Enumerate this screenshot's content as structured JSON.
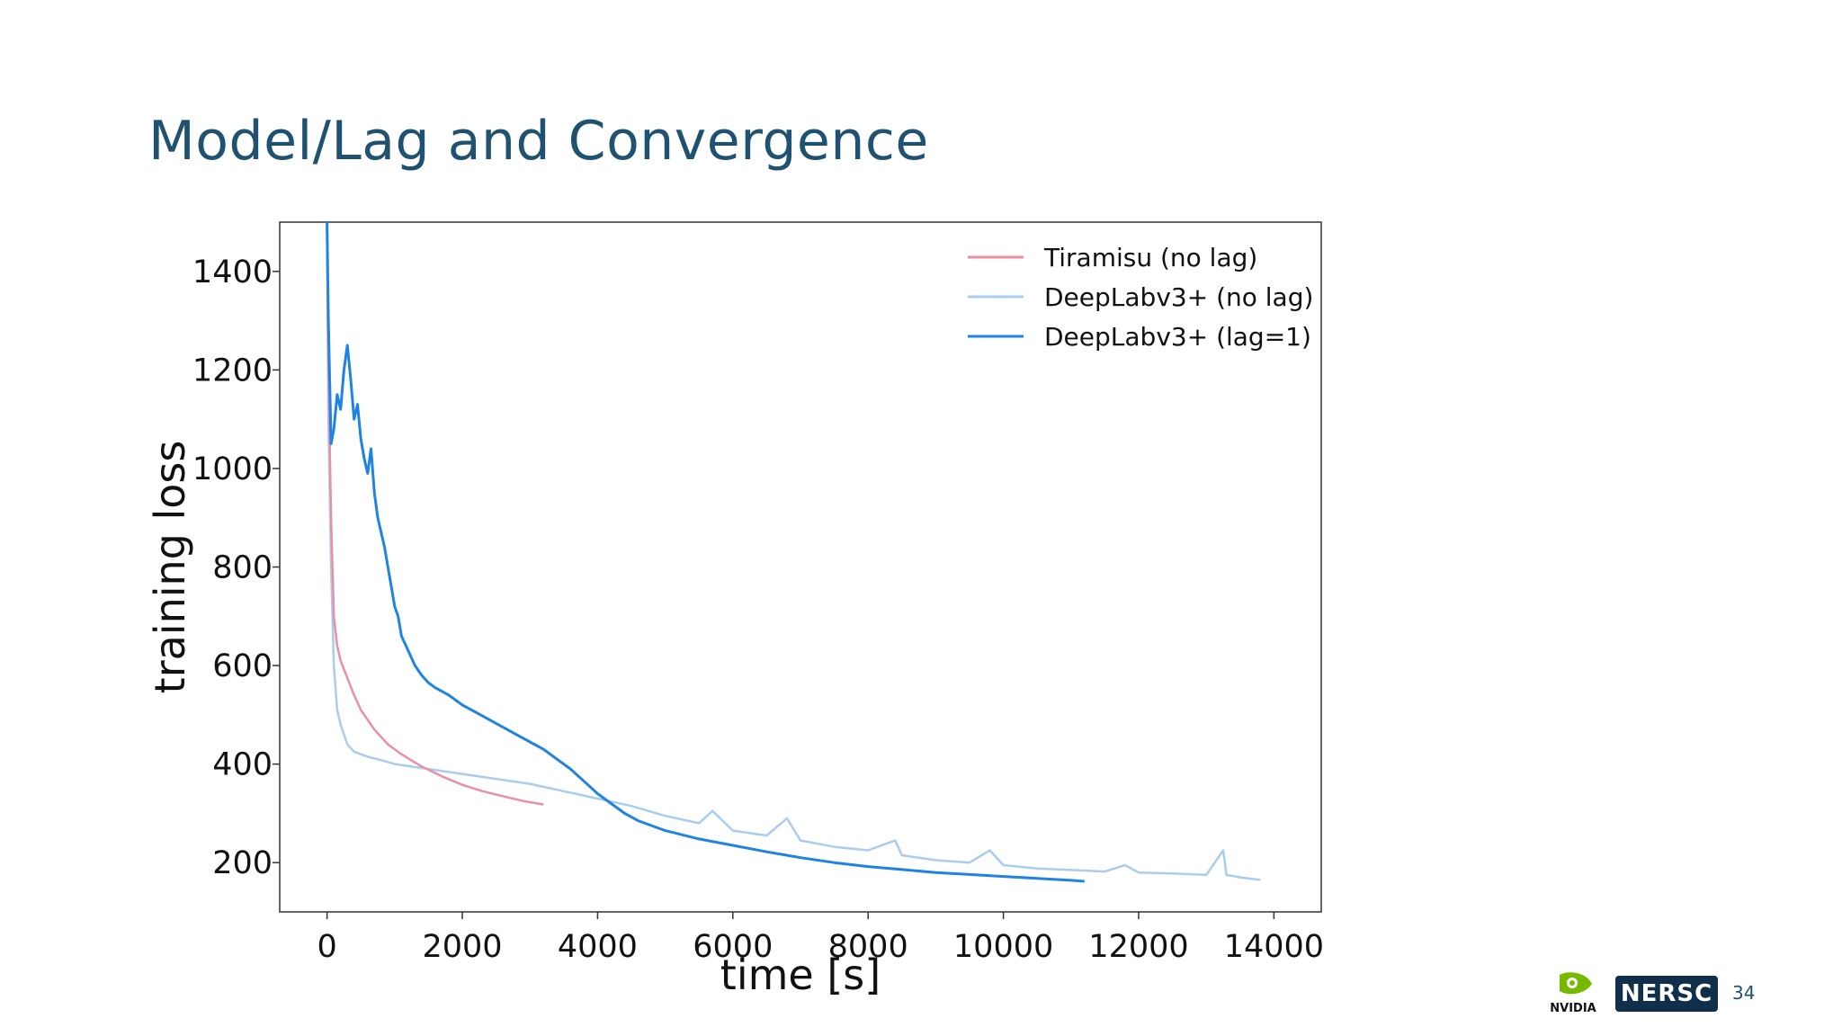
{
  "slide": {
    "title": "Model/Lag and Convergence",
    "page_number": "34",
    "logos": {
      "nvidia": "NVIDIA",
      "nersc": "NERSC"
    }
  },
  "colors": {
    "title": "#1f5170",
    "tiramisu": "#ea8fa5",
    "deeplab_nolag": "#a9cdef",
    "deeplab_lag": "#1f83e4"
  },
  "chart_data": {
    "type": "line",
    "title": "",
    "xlabel": "time [s]",
    "ylabel": "training loss",
    "xlim": [
      -700,
      14700
    ],
    "ylim": [
      100,
      1500
    ],
    "xticks": [
      0,
      2000,
      4000,
      6000,
      8000,
      10000,
      12000,
      14000
    ],
    "yticks": [
      200,
      400,
      600,
      800,
      1000,
      1200,
      1400
    ],
    "grid": false,
    "legend_position": "top-right",
    "series": [
      {
        "name": "Tiramisu (no lag)",
        "color": "#ea8fa5",
        "x": [
          0,
          20,
          60,
          100,
          150,
          200,
          300,
          400,
          500,
          700,
          900,
          1100,
          1400,
          1700,
          2000,
          2300,
          2600,
          2900,
          3200
        ],
        "y": [
          1500,
          1200,
          900,
          700,
          640,
          610,
          575,
          540,
          510,
          470,
          440,
          420,
          395,
          375,
          358,
          345,
          335,
          325,
          318
        ]
      },
      {
        "name": "DeepLabv3+ (no lag)",
        "color": "#a9cdef",
        "x": [
          0,
          20,
          60,
          100,
          150,
          200,
          300,
          400,
          600,
          800,
          1000,
          1500,
          2000,
          2500,
          3000,
          3500,
          4000,
          4500,
          5000,
          5500,
          5700,
          6000,
          6500,
          6800,
          7000,
          7500,
          8000,
          8400,
          8500,
          9000,
          9500,
          9800,
          10000,
          10500,
          11000,
          11500,
          11800,
          12000,
          12500,
          13000,
          13250,
          13300,
          13500,
          13800
        ],
        "y": [
          1500,
          1100,
          800,
          600,
          510,
          480,
          440,
          425,
          415,
          408,
          400,
          390,
          380,
          370,
          360,
          345,
          330,
          315,
          295,
          280,
          305,
          265,
          255,
          290,
          245,
          232,
          225,
          245,
          215,
          205,
          200,
          225,
          195,
          188,
          185,
          182,
          195,
          180,
          178,
          175,
          225,
          175,
          170,
          165
        ]
      },
      {
        "name": "DeepLabv3+ (lag=1)",
        "color": "#1f83e4",
        "x": [
          0,
          20,
          60,
          100,
          150,
          200,
          250,
          300,
          350,
          400,
          450,
          500,
          550,
          600,
          650,
          700,
          750,
          800,
          850,
          900,
          950,
          1000,
          1050,
          1100,
          1200,
          1300,
          1400,
          1500,
          1600,
          1800,
          2000,
          2200,
          2400,
          2600,
          2800,
          3000,
          3200,
          3400,
          3600,
          3800,
          4000,
          4200,
          4400,
          4600,
          4800,
          5000,
          5500,
          6000,
          6500,
          7000,
          7500,
          8000,
          8500,
          9000,
          9500,
          10000,
          10500,
          11000,
          11200
        ],
        "y": [
          1500,
          1300,
          1050,
          1080,
          1150,
          1120,
          1200,
          1250,
          1180,
          1100,
          1130,
          1060,
          1020,
          990,
          1040,
          950,
          900,
          870,
          840,
          800,
          760,
          720,
          700,
          660,
          630,
          600,
          580,
          565,
          555,
          540,
          520,
          505,
          490,
          475,
          460,
          445,
          430,
          410,
          390,
          365,
          340,
          320,
          300,
          285,
          275,
          265,
          248,
          235,
          222,
          210,
          200,
          192,
          186,
          180,
          176,
          172,
          168,
          164,
          162
        ]
      }
    ]
  }
}
